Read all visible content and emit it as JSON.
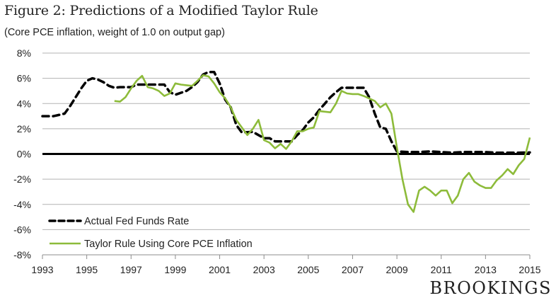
{
  "chart_data": {
    "type": "line",
    "title": "Figure 2: Predictions of a Modified Taylor Rule",
    "subtitle": "(Core PCE inflation, weight of 1.0 on output gap)",
    "xlabel": "",
    "ylabel": "",
    "xlim": [
      1993,
      2015
    ],
    "ylim": [
      -8,
      8
    ],
    "x_ticks": [
      1993,
      1995,
      1997,
      1999,
      2001,
      2003,
      2005,
      2007,
      2009,
      2011,
      2013,
      2015
    ],
    "x_tick_labels": [
      "1993",
      "1995",
      "1997",
      "1999",
      "2001",
      "2003",
      "2005",
      "2007",
      "2009",
      "2011",
      "2013",
      "2015"
    ],
    "y_ticks": [
      -8,
      -6,
      -4,
      -2,
      0,
      2,
      4,
      6,
      8
    ],
    "y_tick_labels": [
      "-8%",
      "-6%",
      "-4%",
      "-2%",
      "0%",
      "2%",
      "4%",
      "6%",
      "8%"
    ],
    "grid": true,
    "legend_position": "bottom-left",
    "series": [
      {
        "name": "Actual Fed Funds Rate",
        "style": "dashed",
        "color": "#000000",
        "x": [
          1993.0,
          1993.5,
          1994.0,
          1994.25,
          1994.5,
          1994.75,
          1995.0,
          1995.25,
          1995.5,
          1995.75,
          1996.0,
          1996.25,
          1996.5,
          1997.0,
          1997.25,
          1997.5,
          1998.0,
          1998.5,
          1998.75,
          1999.0,
          1999.5,
          1999.75,
          2000.0,
          2000.25,
          2000.5,
          2000.75,
          2001.0,
          2001.25,
          2001.5,
          2001.75,
          2002.0,
          2002.5,
          2002.75,
          2003.0,
          2003.25,
          2003.5,
          2004.0,
          2004.25,
          2004.5,
          2004.75,
          2005.0,
          2005.25,
          2005.5,
          2005.75,
          2006.0,
          2006.25,
          2006.5,
          2007.0,
          2007.5,
          2007.75,
          2008.0,
          2008.25,
          2008.5,
          2008.75,
          2009.0,
          2009.5,
          2010.0,
          2010.5,
          2011.0,
          2011.5,
          2012.0,
          2012.5,
          2013.0,
          2013.5,
          2014.0,
          2014.5,
          2015.0
        ],
        "values": [
          3.0,
          3.0,
          3.2,
          3.8,
          4.5,
          5.2,
          5.8,
          6.0,
          5.9,
          5.7,
          5.4,
          5.25,
          5.3,
          5.3,
          5.5,
          5.5,
          5.5,
          5.5,
          4.9,
          4.7,
          5.0,
          5.3,
          5.7,
          6.3,
          6.5,
          6.5,
          5.6,
          4.3,
          3.7,
          2.3,
          1.7,
          1.75,
          1.5,
          1.25,
          1.25,
          1.0,
          1.0,
          1.0,
          1.5,
          1.9,
          2.5,
          2.9,
          3.5,
          4.0,
          4.5,
          4.9,
          5.25,
          5.25,
          5.25,
          4.5,
          3.2,
          2.1,
          2.0,
          1.0,
          0.2,
          0.15,
          0.15,
          0.2,
          0.15,
          0.1,
          0.15,
          0.15,
          0.15,
          0.1,
          0.1,
          0.1,
          0.12
        ]
      },
      {
        "name": "Taylor Rule Using Core PCE Inflation",
        "style": "solid",
        "color": "#8dbb3a",
        "x": [
          1996.25,
          1996.5,
          1996.75,
          1997.0,
          1997.25,
          1997.5,
          1997.75,
          1998.0,
          1998.25,
          1998.5,
          1998.75,
          1999.0,
          1999.25,
          1999.5,
          1999.75,
          2000.0,
          2000.25,
          2000.5,
          2000.75,
          2001.0,
          2001.25,
          2001.5,
          2001.75,
          2002.0,
          2002.25,
          2002.5,
          2002.75,
          2003.0,
          2003.25,
          2003.5,
          2003.75,
          2004.0,
          2004.25,
          2004.5,
          2004.75,
          2005.0,
          2005.25,
          2005.5,
          2005.75,
          2006.0,
          2006.25,
          2006.5,
          2006.75,
          2007.0,
          2007.25,
          2007.5,
          2007.75,
          2008.0,
          2008.25,
          2008.5,
          2008.75,
          2009.0,
          2009.25,
          2009.5,
          2009.75,
          2010.0,
          2010.25,
          2010.5,
          2010.75,
          2011.0,
          2011.25,
          2011.5,
          2011.75,
          2012.0,
          2012.25,
          2012.5,
          2012.75,
          2013.0,
          2013.25,
          2013.5,
          2013.75,
          2014.0,
          2014.25,
          2014.5,
          2014.75,
          2015.0
        ],
        "values": [
          4.2,
          4.15,
          4.5,
          5.2,
          5.8,
          6.2,
          5.3,
          5.2,
          5.0,
          4.6,
          4.8,
          5.6,
          5.5,
          5.45,
          5.4,
          5.8,
          6.25,
          6.15,
          5.6,
          4.9,
          4.4,
          3.7,
          2.7,
          2.1,
          1.5,
          2.0,
          2.7,
          1.1,
          0.9,
          0.45,
          0.8,
          0.4,
          1.0,
          1.8,
          1.8,
          2.0,
          2.1,
          3.4,
          3.35,
          3.3,
          4.0,
          5.0,
          4.8,
          4.75,
          4.75,
          4.6,
          4.4,
          4.2,
          3.7,
          4.0,
          3.2,
          0.5,
          -2.0,
          -4.0,
          -4.6,
          -2.9,
          -2.6,
          -2.9,
          -3.3,
          -2.9,
          -2.9,
          -3.9,
          -3.3,
          -2.0,
          -1.5,
          -2.2,
          -2.5,
          -2.7,
          -2.7,
          -2.1,
          -1.7,
          -1.2,
          -1.6,
          -0.9,
          -0.4,
          1.3
        ]
      }
    ]
  },
  "brand": "BROOKINGS"
}
